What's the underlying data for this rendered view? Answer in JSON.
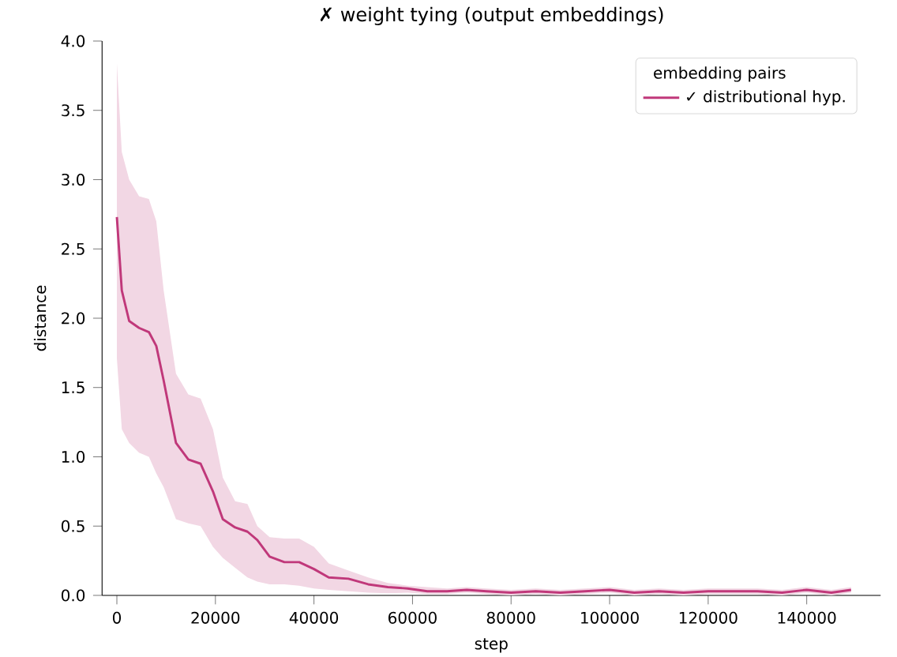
{
  "chart_data": {
    "type": "line",
    "title": "✗ weight tying (output embeddings)",
    "xlabel": "step",
    "ylabel": "distance",
    "legend_title": "embedding pairs",
    "legend": "top right",
    "xlim": [
      -3000,
      155000
    ],
    "ylim": [
      0,
      4
    ],
    "xticks": [
      0,
      20000,
      40000,
      60000,
      80000,
      100000,
      120000,
      140000
    ],
    "yticks": [
      {
        "value": 0,
        "label": "0.0"
      },
      {
        "value": 0.5,
        "label": "0.5"
      },
      {
        "value": 1,
        "label": "1.0"
      },
      {
        "value": 1.5,
        "label": "1.5"
      },
      {
        "value": 2,
        "label": "2.0"
      },
      {
        "value": 2.5,
        "label": "2.5"
      },
      {
        "value": 3,
        "label": "3.0"
      },
      {
        "value": 3.5,
        "label": "3.5"
      },
      {
        "value": 4,
        "label": "4.0"
      }
    ],
    "x": [
      0,
      1000,
      2500,
      4500,
      6500,
      8000,
      9500,
      12000,
      14500,
      17000,
      19500,
      21500,
      24000,
      26500,
      28500,
      31000,
      34000,
      37000,
      40000,
      43000,
      47000,
      51000,
      55000,
      59000,
      63000,
      67000,
      71000,
      75000,
      80000,
      85000,
      90000,
      95000,
      100000,
      105000,
      110000,
      115000,
      120000,
      125000,
      130000,
      135000,
      140000,
      145000,
      149000
    ],
    "series": [
      {
        "name": "✓ distributional hyp.",
        "color": "#c0387a",
        "values": [
          2.73,
          2.2,
          1.98,
          1.93,
          1.9,
          1.8,
          1.55,
          1.1,
          0.98,
          0.95,
          0.75,
          0.55,
          0.49,
          0.46,
          0.4,
          0.28,
          0.24,
          0.24,
          0.19,
          0.13,
          0.12,
          0.08,
          0.06,
          0.05,
          0.03,
          0.03,
          0.04,
          0.03,
          0.02,
          0.03,
          0.02,
          0.03,
          0.04,
          0.02,
          0.03,
          0.02,
          0.03,
          0.03,
          0.03,
          0.02,
          0.04,
          0.02,
          0.04
        ],
        "upper": [
          3.84,
          3.2,
          3.0,
          2.88,
          2.86,
          2.7,
          2.2,
          1.6,
          1.45,
          1.42,
          1.2,
          0.85,
          0.68,
          0.66,
          0.5,
          0.42,
          0.41,
          0.41,
          0.35,
          0.23,
          0.18,
          0.13,
          0.09,
          0.07,
          0.06,
          0.05,
          0.06,
          0.05,
          0.04,
          0.05,
          0.04,
          0.05,
          0.06,
          0.04,
          0.05,
          0.04,
          0.05,
          0.05,
          0.05,
          0.04,
          0.06,
          0.04,
          0.06
        ],
        "lower": [
          1.71,
          1.2,
          1.1,
          1.03,
          1.0,
          0.88,
          0.78,
          0.55,
          0.52,
          0.5,
          0.35,
          0.27,
          0.2,
          0.13,
          0.1,
          0.08,
          0.08,
          0.07,
          0.05,
          0.04,
          0.03,
          0.02,
          0.015,
          0.02,
          0.01,
          0.01,
          0.02,
          0.01,
          0.0,
          0.01,
          0.0,
          0.01,
          0.02,
          0.0,
          0.01,
          0.0,
          0.01,
          0.01,
          0.01,
          0.0,
          0.02,
          0.0,
          0.02
        ]
      }
    ]
  }
}
